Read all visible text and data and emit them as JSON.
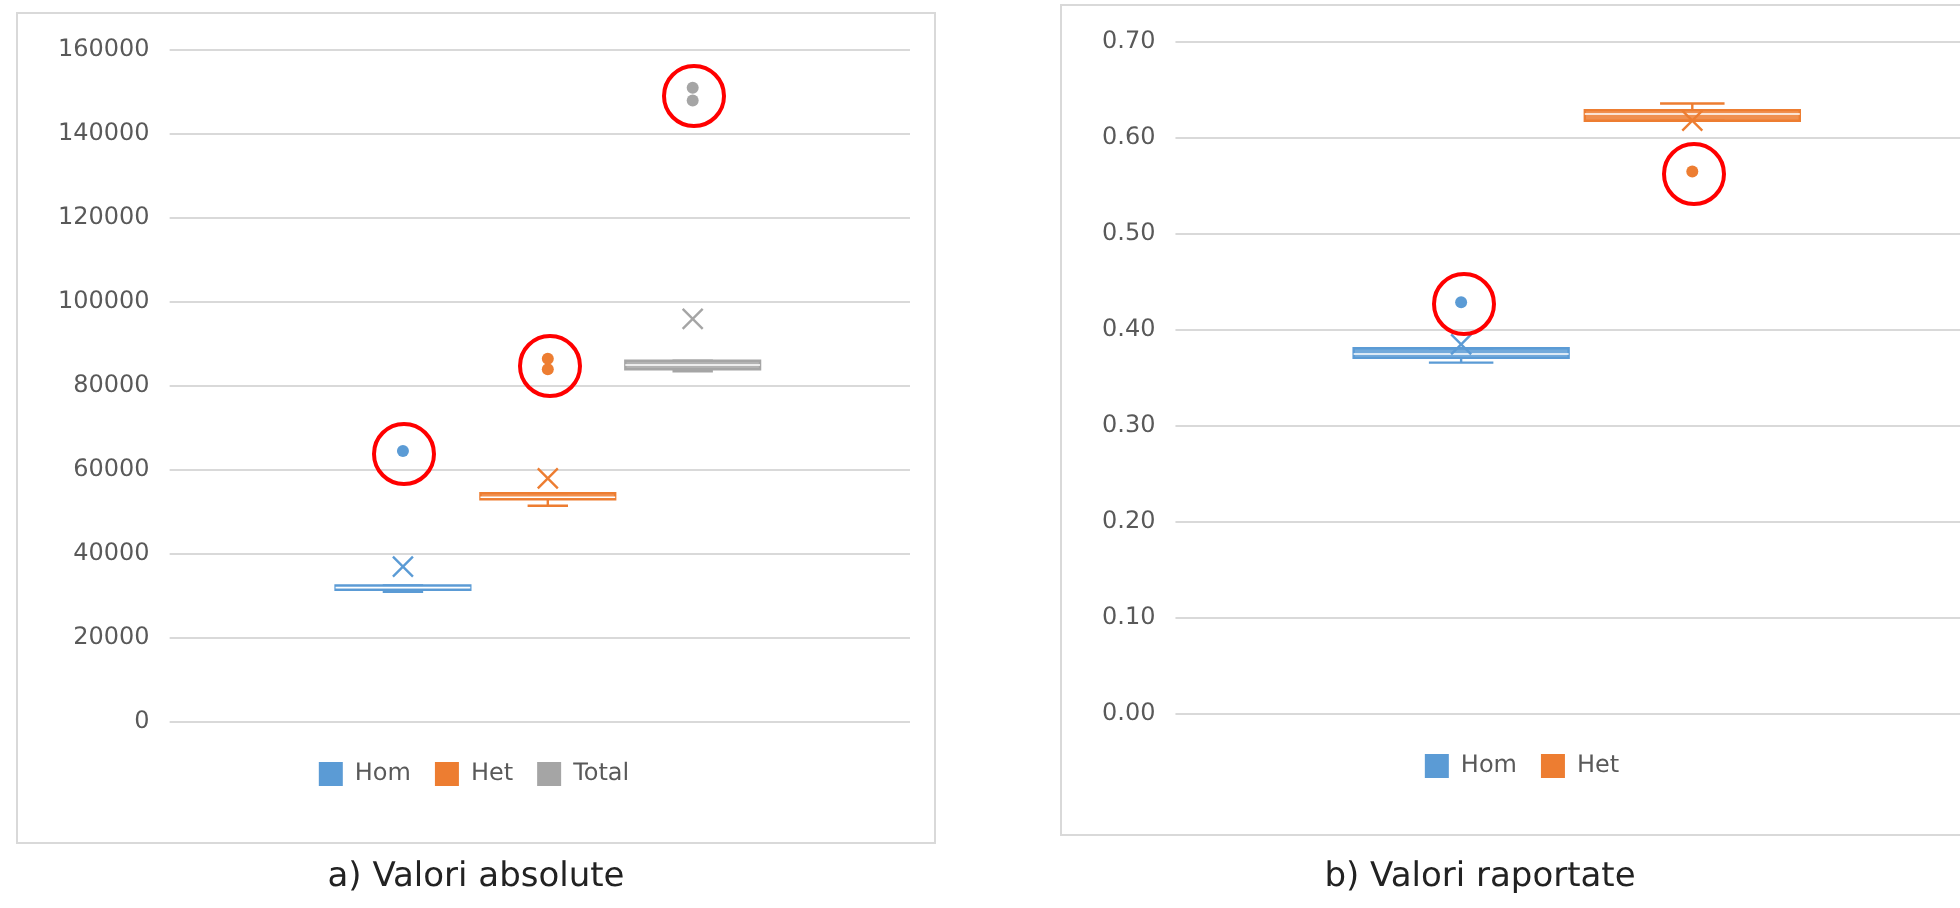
{
  "chart_data": [
    {
      "type": "box",
      "title": "a) Valori absolute",
      "categories": [
        null
      ],
      "ylim": [
        0,
        160000
      ],
      "yticks": [
        0,
        20000,
        40000,
        60000,
        80000,
        100000,
        120000,
        140000,
        160000
      ],
      "grid": "y",
      "legend": "bottom",
      "tick_labels": "y",
      "series": [
        {
          "name": "Hom",
          "color": "#5b9bd5",
          "boxes": [
            {
              "low": 31000,
              "q1": 31500,
              "median": 32000,
              "q3": 32500,
              "high": 32500,
              "mean": 37000,
              "outliers": [
                64500
              ]
            }
          ]
        },
        {
          "name": "Het",
          "color": "#ed7d31",
          "boxes": [
            {
              "low": 51500,
              "q1": 53000,
              "median": 53500,
              "q3": 54500,
              "high": 54500,
              "mean": 58000,
              "outliers": [
                84000,
                86500
              ]
            }
          ]
        },
        {
          "name": "Total",
          "color": "#a5a5a5",
          "boxes": [
            {
              "low": 83500,
              "q1": 84000,
              "median": 85000,
              "q3": 86000,
              "high": 86000,
              "mean": 96000,
              "outliers": [
                148000,
                151000
              ]
            }
          ]
        }
      ]
    },
    {
      "type": "box",
      "title": "b) Valori raportate",
      "categories": [
        null
      ],
      "ylim": [
        0,
        0.7
      ],
      "yticks": [
        {
          "value": 0,
          "label": "0.00"
        },
        {
          "value": 0.1,
          "label": "0.10"
        },
        {
          "value": 0.2,
          "label": "0.20"
        },
        {
          "value": 0.3,
          "label": "0.30"
        },
        {
          "value": 0.4,
          "label": "0.40"
        },
        {
          "value": 0.5,
          "label": "0.50"
        },
        {
          "value": 0.6,
          "label": "0.60"
        },
        {
          "value": 0.7,
          "label": "0.70"
        }
      ],
      "grid": "y",
      "legend": "bottom",
      "tick_labels": "y",
      "series": [
        {
          "name": "Hom",
          "color": "#5b9bd5",
          "boxes": [
            {
              "low": 0.366,
              "q1": 0.371,
              "median": 0.375,
              "q3": 0.381,
              "high": 0.381,
              "mean": 0.385,
              "outliers": [
                0.429
              ]
            }
          ]
        },
        {
          "name": "Het",
          "color": "#ed7d31",
          "boxes": [
            {
              "low": 0.618,
              "q1": 0.618,
              "median": 0.625,
              "q3": 0.629,
              "high": 0.636,
              "mean": 0.618,
              "outliers": [
                0.565
              ]
            }
          ]
        }
      ]
    }
  ]
}
